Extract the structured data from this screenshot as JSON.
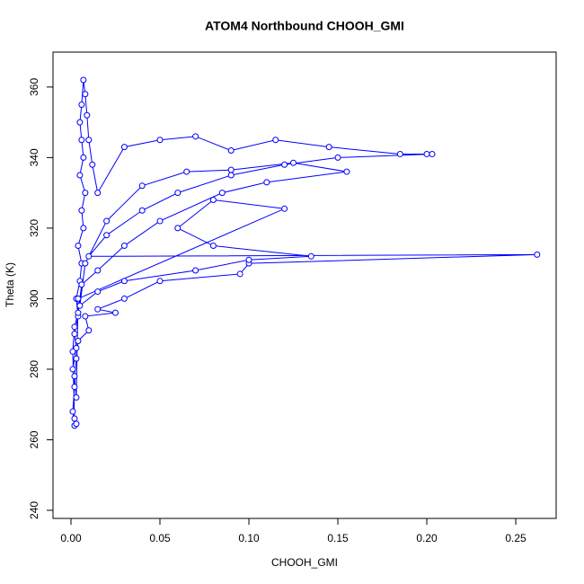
{
  "chart_data": {
    "type": "line",
    "title": "ATOM4 Northbound CHOOH_GMI",
    "x_label": "CHOOH_GMI",
    "y_label": "Theta (K)",
    "color": "#0000ff",
    "markers": "open-circle",
    "xlim": [
      -0.0101,
      0.2727
    ],
    "ylim": [
      237.7,
      369.9
    ],
    "xticks": [
      {
        "value": 0,
        "label": "0.00"
      },
      {
        "value": 0.05,
        "label": "0.05"
      },
      {
        "value": 0.1,
        "label": "0.10"
      },
      {
        "value": 0.15,
        "label": "0.15"
      },
      {
        "value": 0.2,
        "label": "0.20"
      },
      {
        "value": 0.25,
        "label": "0.25"
      }
    ],
    "yticks": [
      240,
      260,
      280,
      300,
      320,
      340,
      360
    ],
    "x": [
      0.002,
      0.001,
      0.002,
      0.001,
      0.003,
      0.002,
      0.004,
      0.003,
      0.005,
      0.006,
      0.004,
      0.007,
      0.006,
      0.008,
      0.005,
      0.007,
      0.006,
      0.005,
      0.006,
      0.007,
      0.008,
      0.009,
      0.01,
      0.012,
      0.015,
      0.03,
      0.05,
      0.07,
      0.09,
      0.115,
      0.145,
      0.185,
      0.2,
      0.203,
      0.15,
      0.12,
      0.09,
      0.06,
      0.04,
      0.02,
      0.01,
      0.262,
      0.1,
      0.095,
      0.05,
      0.03,
      0.015,
      0.025,
      0.008,
      0.01,
      0.004,
      0.003,
      0.002,
      0.003,
      0.004,
      0.12,
      0.08,
      0.06,
      0.08,
      0.135,
      0.1,
      0.07,
      0.03,
      0.015,
      0.005,
      0.008,
      0.02,
      0.04,
      0.065,
      0.09,
      0.125,
      0.155,
      0.11,
      0.085,
      0.05,
      0.03,
      0.015,
      0.006,
      0.004,
      0.002,
      0.001,
      0.002,
      0.003
    ],
    "values": [
      264,
      268,
      275,
      280,
      286,
      290,
      295,
      300,
      305,
      310,
      315,
      320,
      325,
      330,
      335,
      340,
      345,
      350,
      355,
      362,
      358,
      352,
      345,
      338,
      330,
      343,
      345,
      346,
      342,
      345,
      343,
      341,
      341,
      341,
      340,
      338,
      335,
      330,
      325,
      318,
      312,
      312.5,
      310,
      307,
      305,
      300,
      297,
      296,
      295,
      291,
      288,
      283,
      278,
      272,
      300,
      325.5,
      328,
      320,
      315,
      312,
      311,
      308,
      305,
      302,
      298,
      310,
      322,
      332,
      336,
      336.5,
      338.5,
      336,
      333,
      330,
      322,
      315,
      308,
      304,
      296,
      292,
      285,
      266,
      264.5
    ]
  }
}
